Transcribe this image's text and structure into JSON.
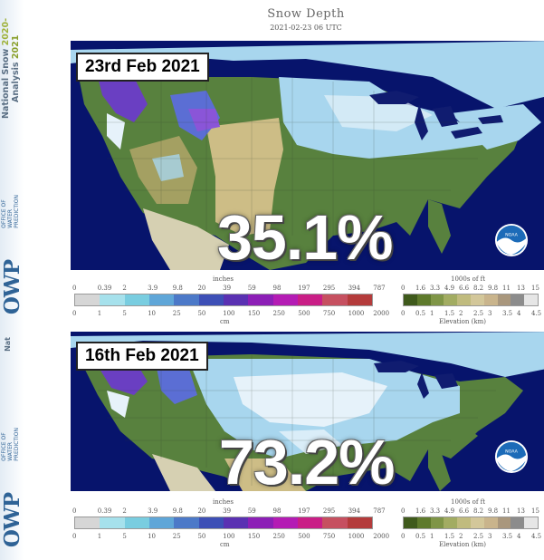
{
  "sidebar": {
    "title_line1": "National Snow",
    "title_year1": "2020-",
    "title_line2": "Analysis",
    "title_year2": "2021",
    "owp_large": "OWP",
    "owp_small1": "OFFICE OF",
    "owp_small2": "WATER",
    "owp_small3": "PREDICTION",
    "nat": "Nat"
  },
  "header": {
    "title": "Snow Depth",
    "subtitle": "2021-02-23 06 UTC"
  },
  "panels": [
    {
      "date": "23rd Feb 2021",
      "snow_cover_percent": "35.1%"
    },
    {
      "date": "16th Feb 2021",
      "snow_cover_percent": "73.2%"
    }
  ],
  "legend": {
    "snow": {
      "units_top": "inches",
      "units_bottom": "cm",
      "inch_ticks": [
        "0",
        "0.39",
        "2",
        "3.9",
        "9.8",
        "20",
        "39",
        "59",
        "98",
        "197",
        "295",
        "394",
        "787"
      ],
      "cm_ticks": [
        "0",
        "1",
        "5",
        "10",
        "25",
        "50",
        "100",
        "150",
        "250",
        "500",
        "750",
        "1000",
        "2000"
      ],
      "colors": [
        "#d6d6d6",
        "#a6e1ec",
        "#79cde0",
        "#5fa6d8",
        "#4c79c8",
        "#3d4fb6",
        "#5a31b2",
        "#8c1fb6",
        "#b41cb4",
        "#c91e86",
        "#c65060",
        "#b43b3b"
      ]
    },
    "elevation": {
      "units_top": "1000s of ft",
      "units_bottom": "Elevation (km)",
      "ft_ticks": [
        "0",
        "1.6",
        "3.3",
        "4.9",
        "6.6",
        "8.2",
        "9.8",
        "11",
        "13",
        "15"
      ],
      "km_ticks": [
        "0",
        "0.5",
        "1",
        "1.5",
        "2",
        "2.5",
        "3",
        "3.5",
        "4",
        "4.5"
      ],
      "colors": [
        "#3f5a1c",
        "#5e7a2c",
        "#7f9547",
        "#a2ac62",
        "#c0bb7e",
        "#d3c79a",
        "#c9b48c",
        "#a9977d",
        "#8c8c8c",
        "#e6e6e6"
      ]
    }
  },
  "colors": {
    "ocean": "#07146c",
    "land_green": "#58813e",
    "land_tan": "#cdbd86",
    "snow_light": "#a8d6ee",
    "snow_white": "#e6f2fa",
    "snow_purple": "#6a3fc2",
    "lakes": "#101c70"
  },
  "icons": {
    "noaa": "noaa-logo-icon"
  }
}
